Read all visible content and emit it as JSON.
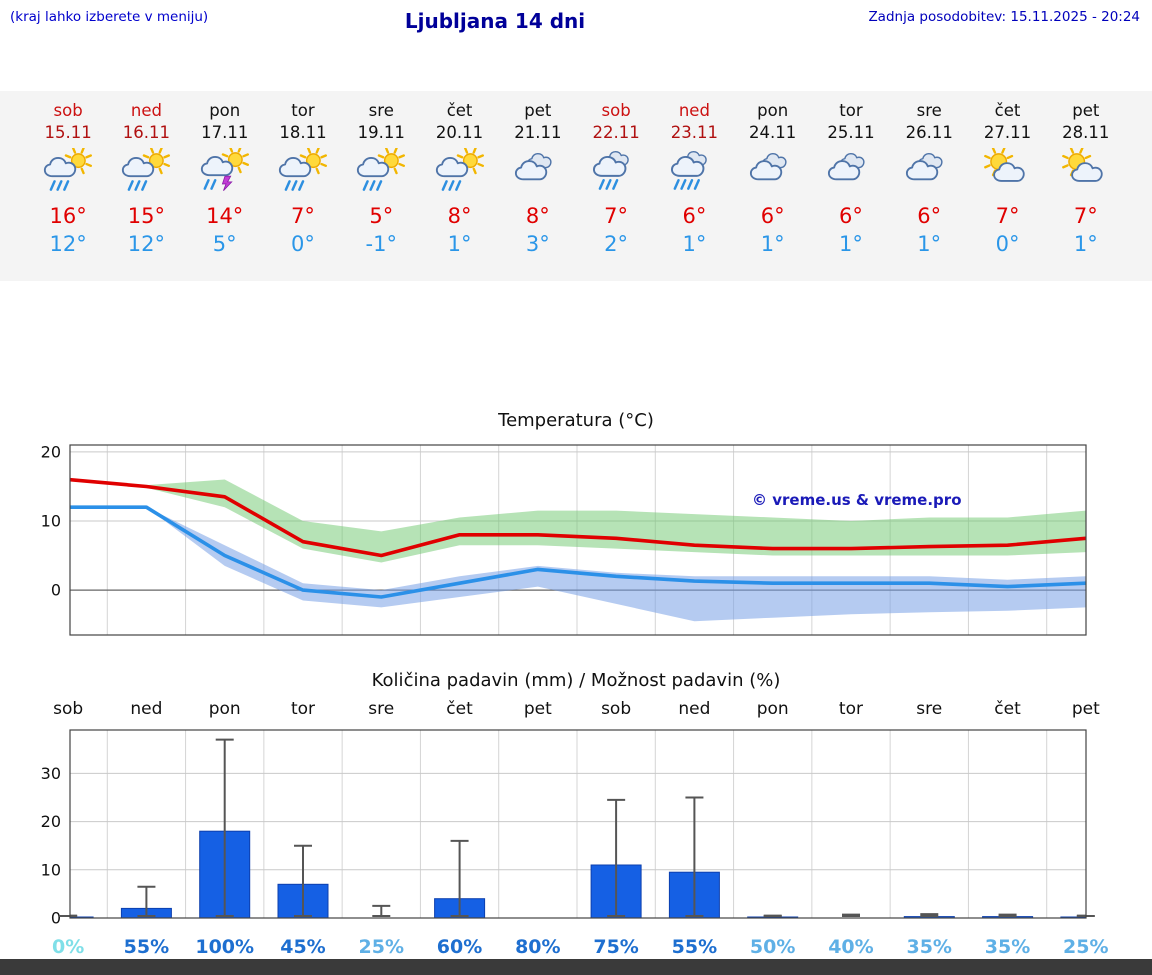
{
  "header": {
    "hint": "(kraj lahko izberete v meniju)",
    "title": "Ljubljana 14 dni",
    "updated": "Zadnja posodobitev: 15.11.2025 - 20:24"
  },
  "forecast": {
    "days": [
      {
        "name": "sob",
        "date": "15.11",
        "weekend": true,
        "icon": "sun-rain",
        "high": "16°",
        "low": "12°"
      },
      {
        "name": "ned",
        "date": "16.11",
        "weekend": true,
        "icon": "sun-rain",
        "high": "15°",
        "low": "12°"
      },
      {
        "name": "pon",
        "date": "17.11",
        "weekend": false,
        "icon": "sun-storm",
        "high": "14°",
        "low": "5°"
      },
      {
        "name": "tor",
        "date": "18.11",
        "weekend": false,
        "icon": "sun-rain",
        "high": "7°",
        "low": "0°"
      },
      {
        "name": "sre",
        "date": "19.11",
        "weekend": false,
        "icon": "sun-rain",
        "high": "5°",
        "low": "-1°"
      },
      {
        "name": "čet",
        "date": "20.11",
        "weekend": false,
        "icon": "sun-rain",
        "high": "8°",
        "low": "1°"
      },
      {
        "name": "pet",
        "date": "21.11",
        "weekend": false,
        "icon": "cloud",
        "high": "8°",
        "low": "3°"
      },
      {
        "name": "sob",
        "date": "22.11",
        "weekend": true,
        "icon": "cloud-rain",
        "high": "7°",
        "low": "2°"
      },
      {
        "name": "ned",
        "date": "23.11",
        "weekend": true,
        "icon": "cloud-heavy-rain",
        "high": "6°",
        "low": "1°"
      },
      {
        "name": "pon",
        "date": "24.11",
        "weekend": false,
        "icon": "cloud",
        "high": "6°",
        "low": "1°"
      },
      {
        "name": "tor",
        "date": "25.11",
        "weekend": false,
        "icon": "cloud",
        "high": "6°",
        "low": "1°"
      },
      {
        "name": "sre",
        "date": "26.11",
        "weekend": false,
        "icon": "cloud",
        "high": "6°",
        "low": "1°"
      },
      {
        "name": "čet",
        "date": "27.11",
        "weekend": false,
        "icon": "sun-cloud",
        "high": "7°",
        "low": "0°"
      },
      {
        "name": "pet",
        "date": "28.11",
        "weekend": false,
        "icon": "sun-cloud",
        "high": "7°",
        "low": "1°"
      }
    ]
  },
  "chart_data": [
    {
      "type": "line",
      "title": "Temperatura (°C)",
      "categories": [
        "sob 15.11",
        "ned 16.11",
        "pon 17.11",
        "tor 18.11",
        "sre 19.11",
        "čet 20.11",
        "pet 21.11",
        "sob 22.11",
        "ned 23.11",
        "pon 24.11",
        "tor 25.11",
        "sre 26.11",
        "čet 27.11",
        "pet 28.11"
      ],
      "yticks": [
        0,
        10,
        20
      ],
      "ylim": [
        -6.5,
        21
      ],
      "watermark": "© vreme.us & vreme.pro",
      "series": [
        {
          "name": "max-temp",
          "color": "#e00000",
          "values": [
            16,
            15,
            13.5,
            7,
            5,
            8,
            8,
            7.5,
            6.5,
            6,
            6,
            6.3,
            6.5,
            7.5
          ]
        },
        {
          "name": "min-temp",
          "color": "#2b90e8",
          "values": [
            12,
            12,
            5,
            0,
            -1,
            1,
            3,
            2,
            1.3,
            1,
            1,
            1,
            0.5,
            1
          ]
        },
        {
          "name": "max-range-upper",
          "color": "#8fd18f",
          "values": [
            16,
            15.2,
            16,
            10,
            8.5,
            10.5,
            11.5,
            11.5,
            11,
            10.5,
            10,
            10.5,
            10.5,
            11.5
          ]
        },
        {
          "name": "max-range-lower",
          "color": "#8fd18f",
          "values": [
            16,
            14.8,
            12,
            6,
            4,
            6.5,
            6.5,
            6,
            5.5,
            5,
            5,
            5,
            5,
            5.5
          ]
        },
        {
          "name": "min-range-upper",
          "color": "#9fc0ef",
          "values": [
            12,
            12,
            6.5,
            1,
            0,
            2,
            3.5,
            2.5,
            2,
            2,
            2,
            2,
            1.5,
            2
          ]
        },
        {
          "name": "min-range-lower",
          "color": "#9fc0ef",
          "values": [
            12,
            12,
            3.5,
            -1.5,
            -2.5,
            -1,
            0.5,
            -2,
            -4.5,
            -4,
            -3.5,
            -3.2,
            -3,
            -2.5
          ]
        }
      ]
    },
    {
      "type": "bar",
      "title": "Količina padavin (mm) / Možnost padavin (%)",
      "categories": [
        "sob",
        "ned",
        "pon",
        "tor",
        "sre",
        "čet",
        "pet",
        "sob",
        "ned",
        "pon",
        "tor",
        "sre",
        "čet",
        "pet"
      ],
      "values": [
        0.2,
        2,
        18,
        7,
        0,
        4,
        0,
        11,
        9.5,
        0.2,
        0,
        0.3,
        0.3,
        0.2
      ],
      "whisker_max": [
        0.5,
        6.5,
        37,
        15,
        2.5,
        16,
        0,
        24.5,
        25,
        0.5,
        0.7,
        0.8,
        0.7,
        0.5
      ],
      "yticks": [
        0,
        10,
        20,
        30
      ],
      "ylim": [
        0,
        39
      ],
      "bar_color": "#1560e4",
      "probabilities": [
        {
          "label": "0%",
          "color": "#7fdfe8"
        },
        {
          "label": "55%",
          "color": "#1e6fd0"
        },
        {
          "label": "100%",
          "color": "#1e6fd0"
        },
        {
          "label": "45%",
          "color": "#1e6fd0"
        },
        {
          "label": "25%",
          "color": "#5fb0e6"
        },
        {
          "label": "60%",
          "color": "#1e6fd0"
        },
        {
          "label": "80%",
          "color": "#1e6fd0"
        },
        {
          "label": "75%",
          "color": "#1e6fd0"
        },
        {
          "label": "55%",
          "color": "#1e6fd0"
        },
        {
          "label": "50%",
          "color": "#5fb0e6"
        },
        {
          "label": "40%",
          "color": "#5fb0e6"
        },
        {
          "label": "35%",
          "color": "#5fb0e6"
        },
        {
          "label": "35%",
          "color": "#5fb0e6"
        },
        {
          "label": "25%",
          "color": "#5fb0e6"
        }
      ]
    }
  ]
}
